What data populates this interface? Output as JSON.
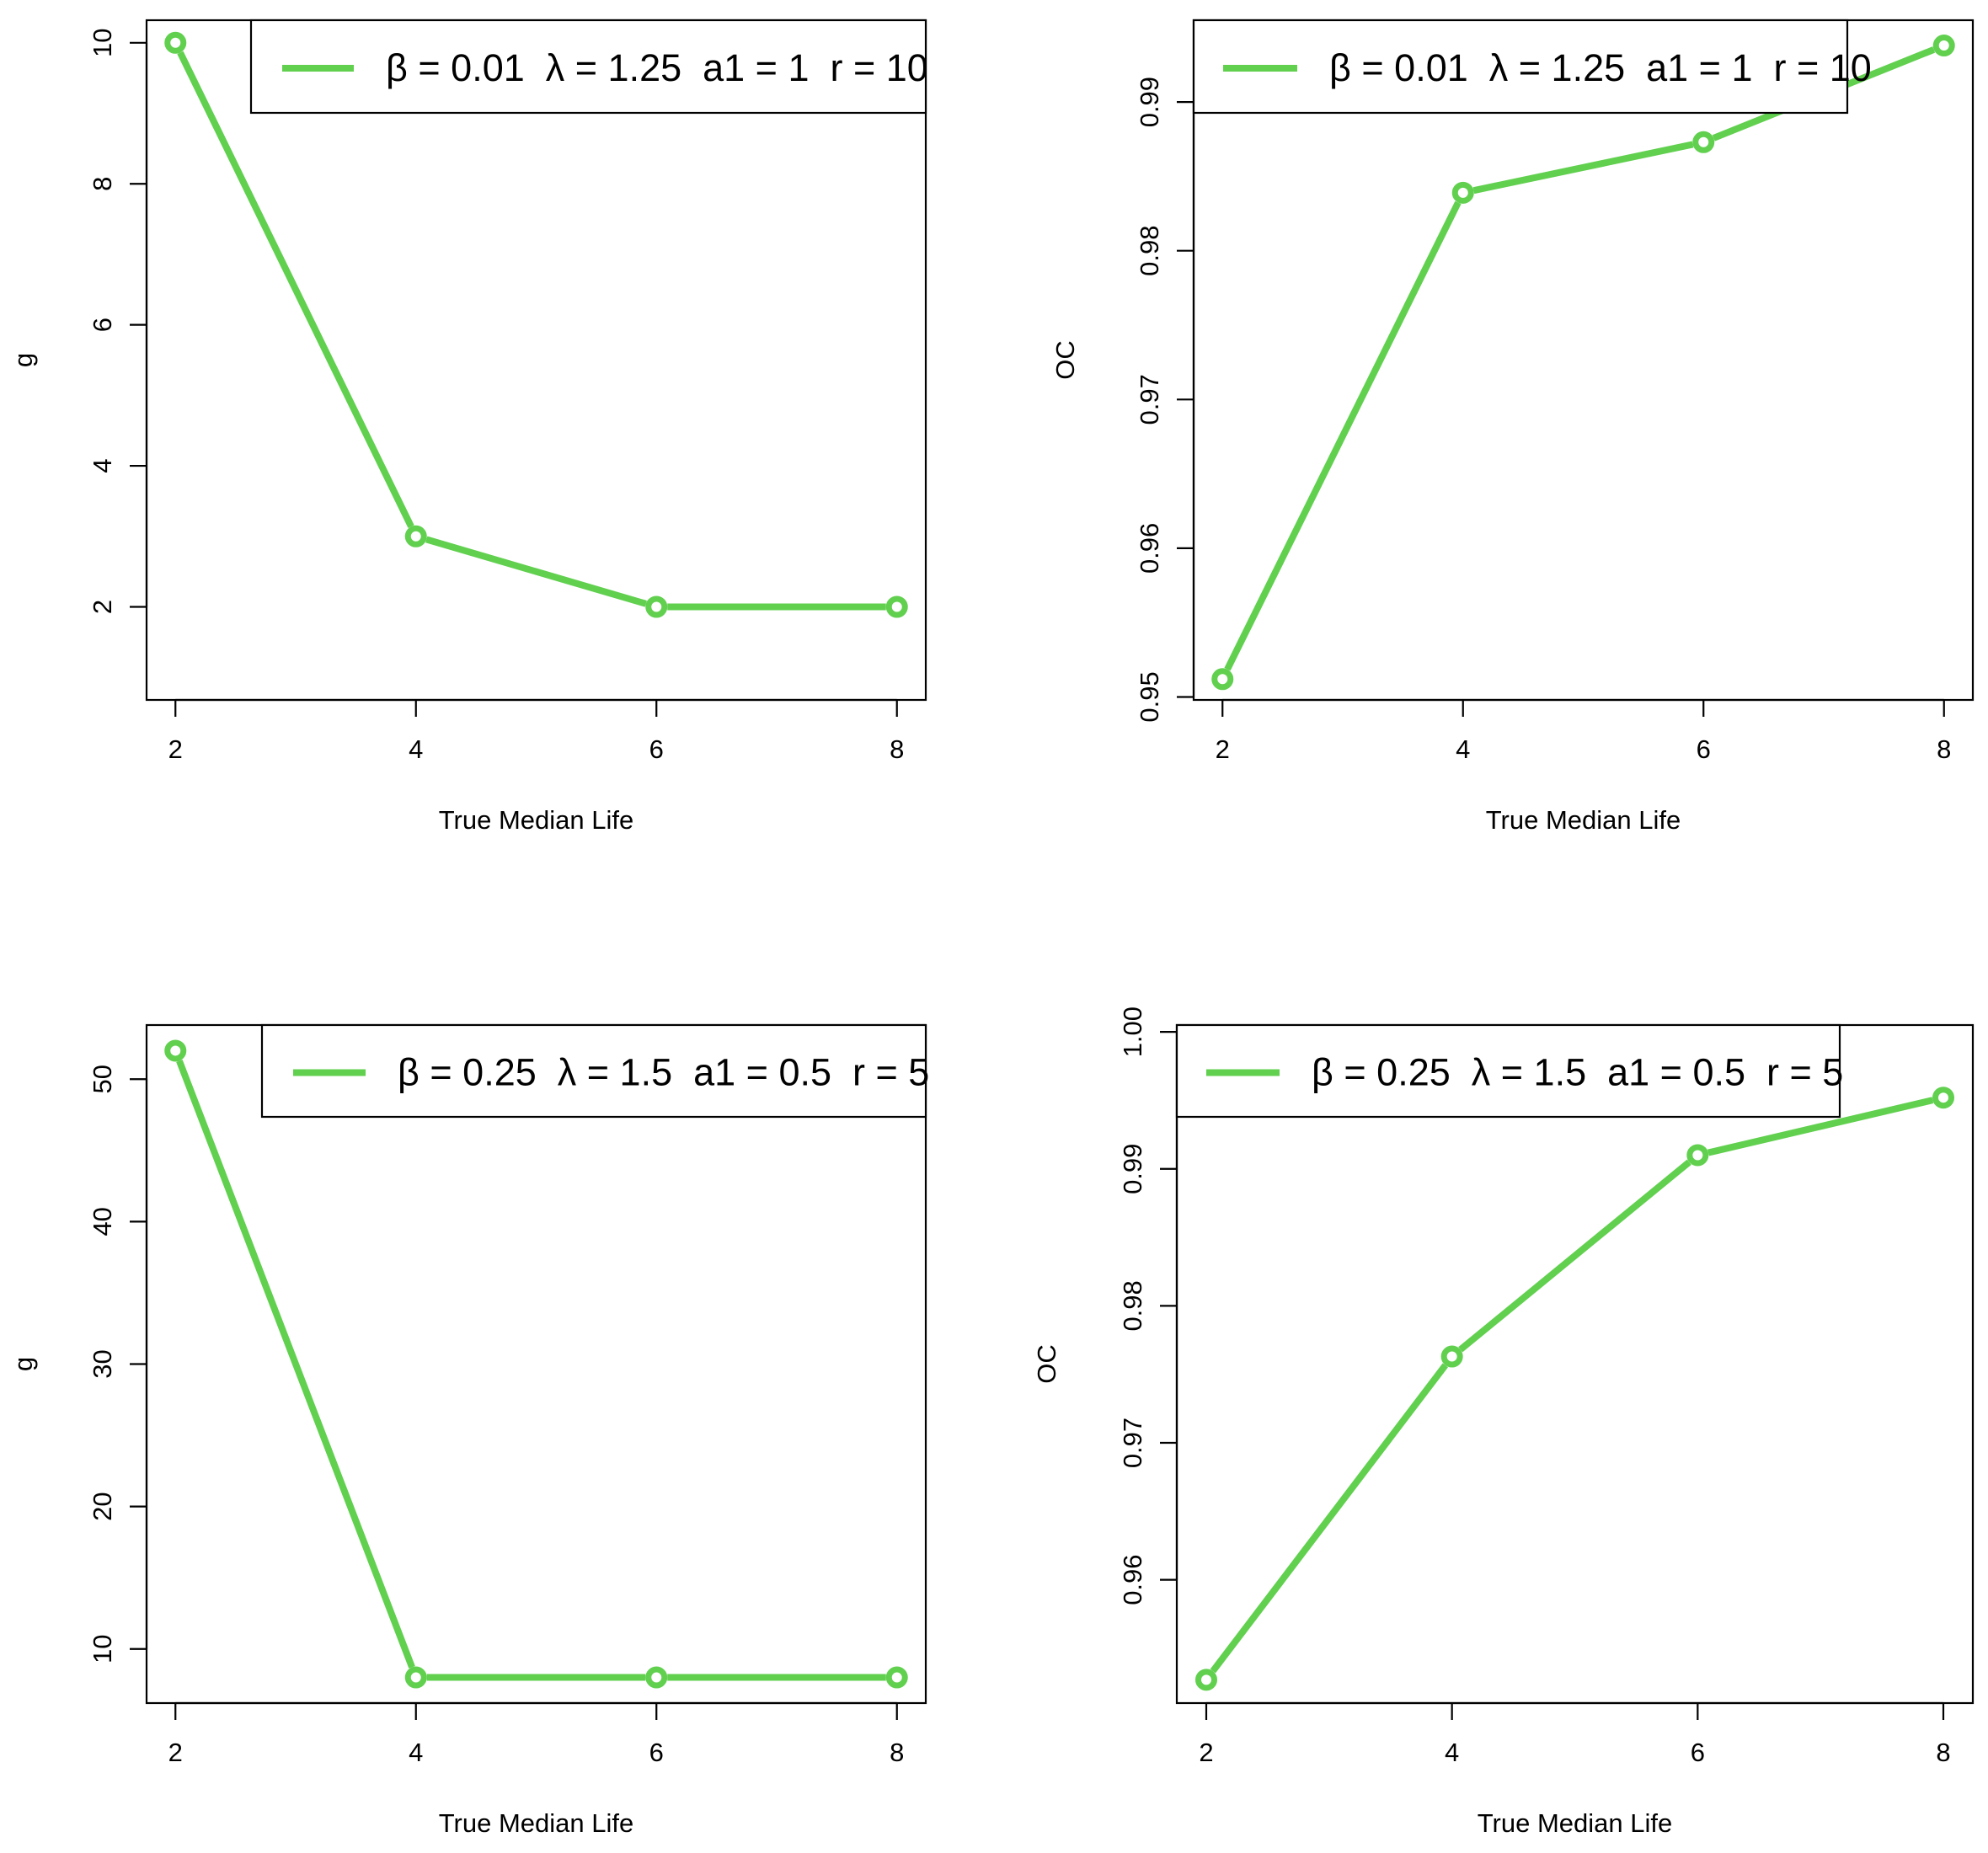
{
  "figure_title": "",
  "chart_data": [
    {
      "type": "line",
      "title": "",
      "xlabel": "True Median Life",
      "ylabel": "g",
      "x": [
        2,
        4,
        6,
        8
      ],
      "xlim": [
        1.76,
        8.24
      ],
      "xticks": [
        2,
        4,
        6,
        8
      ],
      "ylim": [
        0.68,
        10.32
      ],
      "yticks": [
        2,
        4,
        6,
        8,
        10
      ],
      "grid": false,
      "legend_position": "top-right",
      "series": [
        {
          "name": "β = 0.01  λ = 1.25  a1 = 1  r = 10",
          "color": "#61D04F",
          "values": [
            10,
            3,
            2,
            2
          ]
        }
      ]
    },
    {
      "type": "line",
      "title": "",
      "xlabel": "True Median Life",
      "ylabel": "OC",
      "x": [
        2,
        4,
        6,
        8
      ],
      "xlim": [
        1.76,
        8.24
      ],
      "xticks": [
        2,
        4,
        6,
        8
      ],
      "ylim": [
        0.9498,
        0.9955
      ],
      "yticks": [
        0.95,
        0.96,
        0.97,
        0.98,
        0.99
      ],
      "grid": false,
      "legend_position": "top-left",
      "series": [
        {
          "name": "β = 0.01  λ = 1.25  a1 = 1  r = 10",
          "color": "#61D04F",
          "values": [
            0.9512,
            0.9839,
            0.9873,
            0.9938
          ]
        }
      ]
    },
    {
      "type": "line",
      "title": "",
      "xlabel": "True Median Life",
      "ylabel": "g",
      "x": [
        2,
        4,
        6,
        8
      ],
      "xlim": [
        1.76,
        8.24
      ],
      "xticks": [
        2,
        4,
        6,
        8
      ],
      "ylim": [
        6.2,
        53.8
      ],
      "yticks": [
        10,
        20,
        30,
        40,
        50
      ],
      "grid": false,
      "legend_position": "top-right",
      "series": [
        {
          "name": "β = 0.25  λ = 1.5  a1 = 0.5  r = 5",
          "color": "#61D04F",
          "values": [
            52,
            8,
            8,
            8
          ]
        }
      ]
    },
    {
      "type": "line",
      "title": "",
      "xlabel": "True Median Life",
      "ylabel": "OC",
      "x": [
        2,
        4,
        6,
        8
      ],
      "xlim": [
        1.76,
        8.24
      ],
      "xticks": [
        2,
        4,
        6,
        8
      ],
      "ylim": [
        0.951,
        1.0005
      ],
      "yticks": [
        0.96,
        0.97,
        0.98,
        0.99,
        1.0
      ],
      "yticklabels": [
        "0.96",
        "0.97",
        "0.98",
        "0.99",
        "1.00"
      ],
      "grid": false,
      "legend_position": "top-left",
      "series": [
        {
          "name": "β = 0.25  λ = 1.5  a1 = 0.5  r = 5",
          "color": "#61D04F",
          "values": [
            0.9527,
            0.9763,
            0.991,
            0.9952
          ]
        }
      ]
    }
  ]
}
